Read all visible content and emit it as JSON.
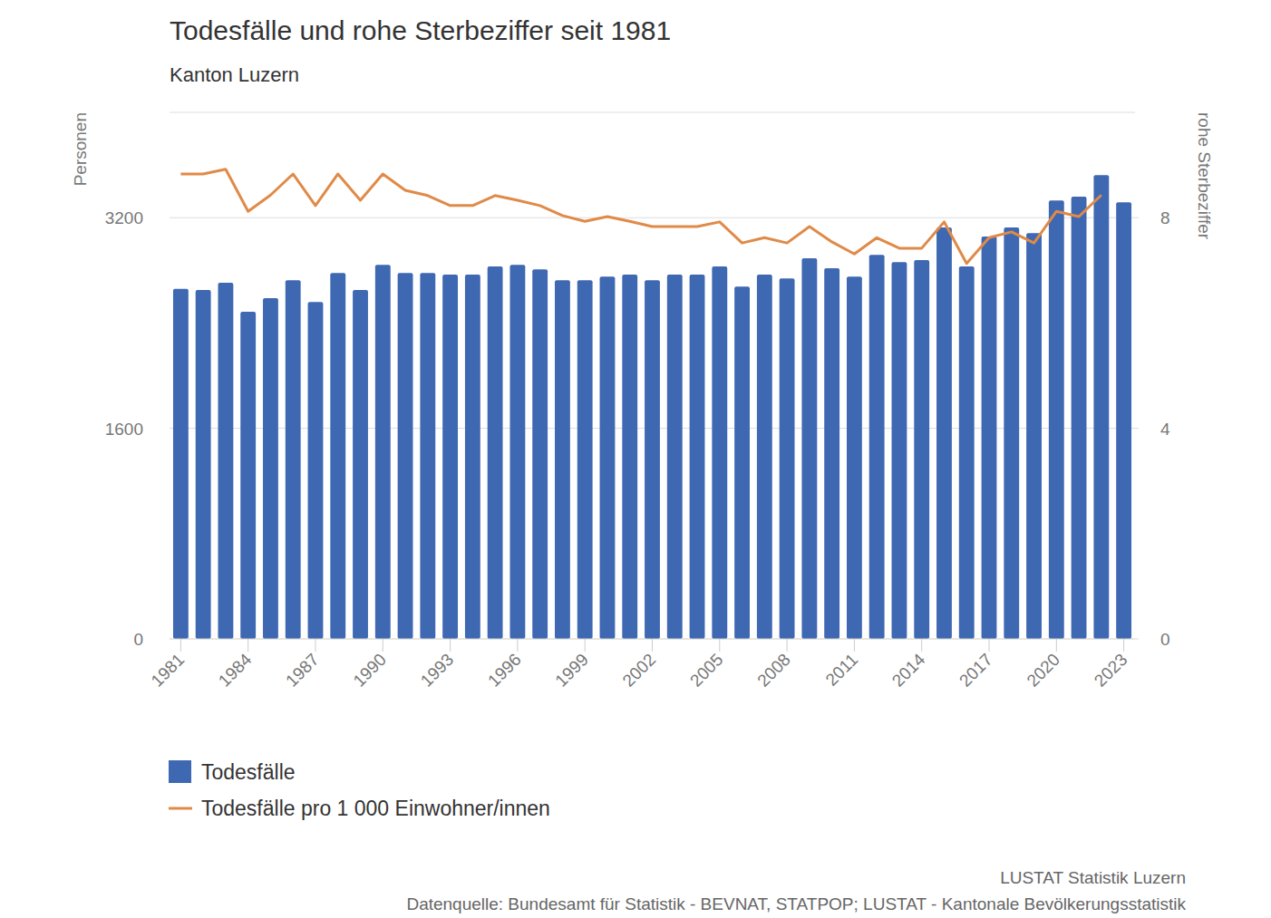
{
  "chart_data": {
    "type": "bar",
    "title": "Todesfälle und rohe Sterbeziffer seit 1981",
    "subtitle": "Kanton Luzern",
    "y_label": "Personen",
    "y2_label": "rohe Sterbeziffer",
    "source_lines": [
      "LUSTAT Statistik Luzern",
      "Datenquelle: Bundesamt für Statistik - BEVNAT, STATPOP; LUSTAT - Kantonale Bevölkerungsstatistik"
    ],
    "categories": [
      "1981",
      null,
      null,
      "1984",
      null,
      null,
      "1987",
      null,
      null,
      "1990",
      null,
      null,
      "1993",
      null,
      null,
      "1996",
      null,
      null,
      "1999",
      null,
      null,
      "2002",
      null,
      null,
      "2005",
      null,
      null,
      "2008",
      null,
      null,
      "2011",
      null,
      null,
      "2014",
      null,
      null,
      "2017",
      null,
      null,
      "2020",
      null,
      null,
      "2023"
    ],
    "series": [
      {
        "name": "Todesfälle",
        "type": "bar",
        "color": "#3e68b2",
        "values": [
          2660,
          2650,
          2705,
          2485,
          2588,
          2725,
          2560,
          2780,
          2650,
          2842,
          2780,
          2780,
          2767,
          2767,
          2829,
          2842,
          2808,
          2725,
          2725,
          2753,
          2767,
          2725,
          2767,
          2767,
          2829,
          2677,
          2767,
          2739,
          2891,
          2815,
          2753,
          2918,
          2863,
          2877,
          3125,
          2829,
          3056,
          3125,
          3083,
          3331,
          3359,
          3524,
          3317
        ]
      },
      {
        "name": "Todesfälle pro 1 000 Einwohner/innen",
        "type": "line",
        "axis": "y2",
        "color": "#e08a48",
        "values": [
          8.83,
          8.83,
          8.92,
          8.12,
          8.43,
          8.83,
          8.23,
          8.83,
          8.33,
          8.83,
          8.52,
          8.42,
          8.23,
          8.23,
          8.42,
          8.33,
          8.23,
          8.04,
          7.93,
          8.02,
          7.93,
          7.83,
          7.83,
          7.83,
          7.92,
          7.52,
          7.62,
          7.52,
          7.83,
          7.54,
          7.31,
          7.62,
          7.42,
          7.42,
          7.92,
          7.13,
          7.62,
          7.73,
          7.52,
          8.12,
          8.02,
          8.43,
          null
        ]
      }
    ],
    "ylim": [
      0,
      4000
    ],
    "yticks": [
      0,
      1600,
      3200
    ],
    "y2lim": [
      0,
      10
    ],
    "y2ticks": [
      0,
      4,
      8
    ],
    "grid": true,
    "legend": "bottom-left"
  }
}
